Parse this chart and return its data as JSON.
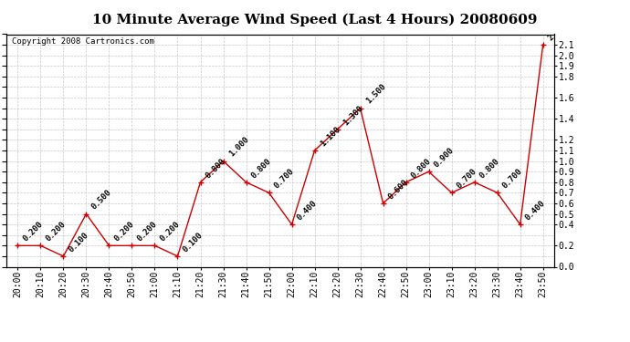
{
  "title": "10 Minute Average Wind Speed (Last 4 Hours) 20080609",
  "copyright": "Copyright 2008 Cartronics.com",
  "times": [
    "20:00",
    "20:10",
    "20:20",
    "20:30",
    "20:40",
    "20:50",
    "21:00",
    "21:10",
    "21:20",
    "21:30",
    "21:40",
    "21:50",
    "22:00",
    "22:10",
    "22:20",
    "22:30",
    "22:40",
    "22:50",
    "23:00",
    "23:10",
    "23:20",
    "23:30",
    "23:40",
    "23:50"
  ],
  "values": [
    0.2,
    0.2,
    0.1,
    0.5,
    0.2,
    0.2,
    0.2,
    0.1,
    0.8,
    1.0,
    0.8,
    0.7,
    0.4,
    1.1,
    1.3,
    1.5,
    0.6,
    0.8,
    0.9,
    0.7,
    0.8,
    0.7,
    0.4,
    2.1
  ],
  "line_color": "#cc0000",
  "marker_color": "#cc0000",
  "bg_color": "#ffffff",
  "grid_color": "#bbbbbb",
  "ylim": [
    0.0,
    2.2
  ],
  "right_yticks": [
    0.0,
    0.2,
    0.4,
    0.5,
    0.6,
    0.7,
    0.8,
    0.9,
    1.0,
    1.1,
    1.2,
    1.4,
    1.6,
    1.8,
    1.9,
    2.0,
    2.1
  ],
  "title_fontsize": 11,
  "tick_fontsize": 7,
  "annotation_fontsize": 6.5,
  "copyright_fontsize": 6.5
}
